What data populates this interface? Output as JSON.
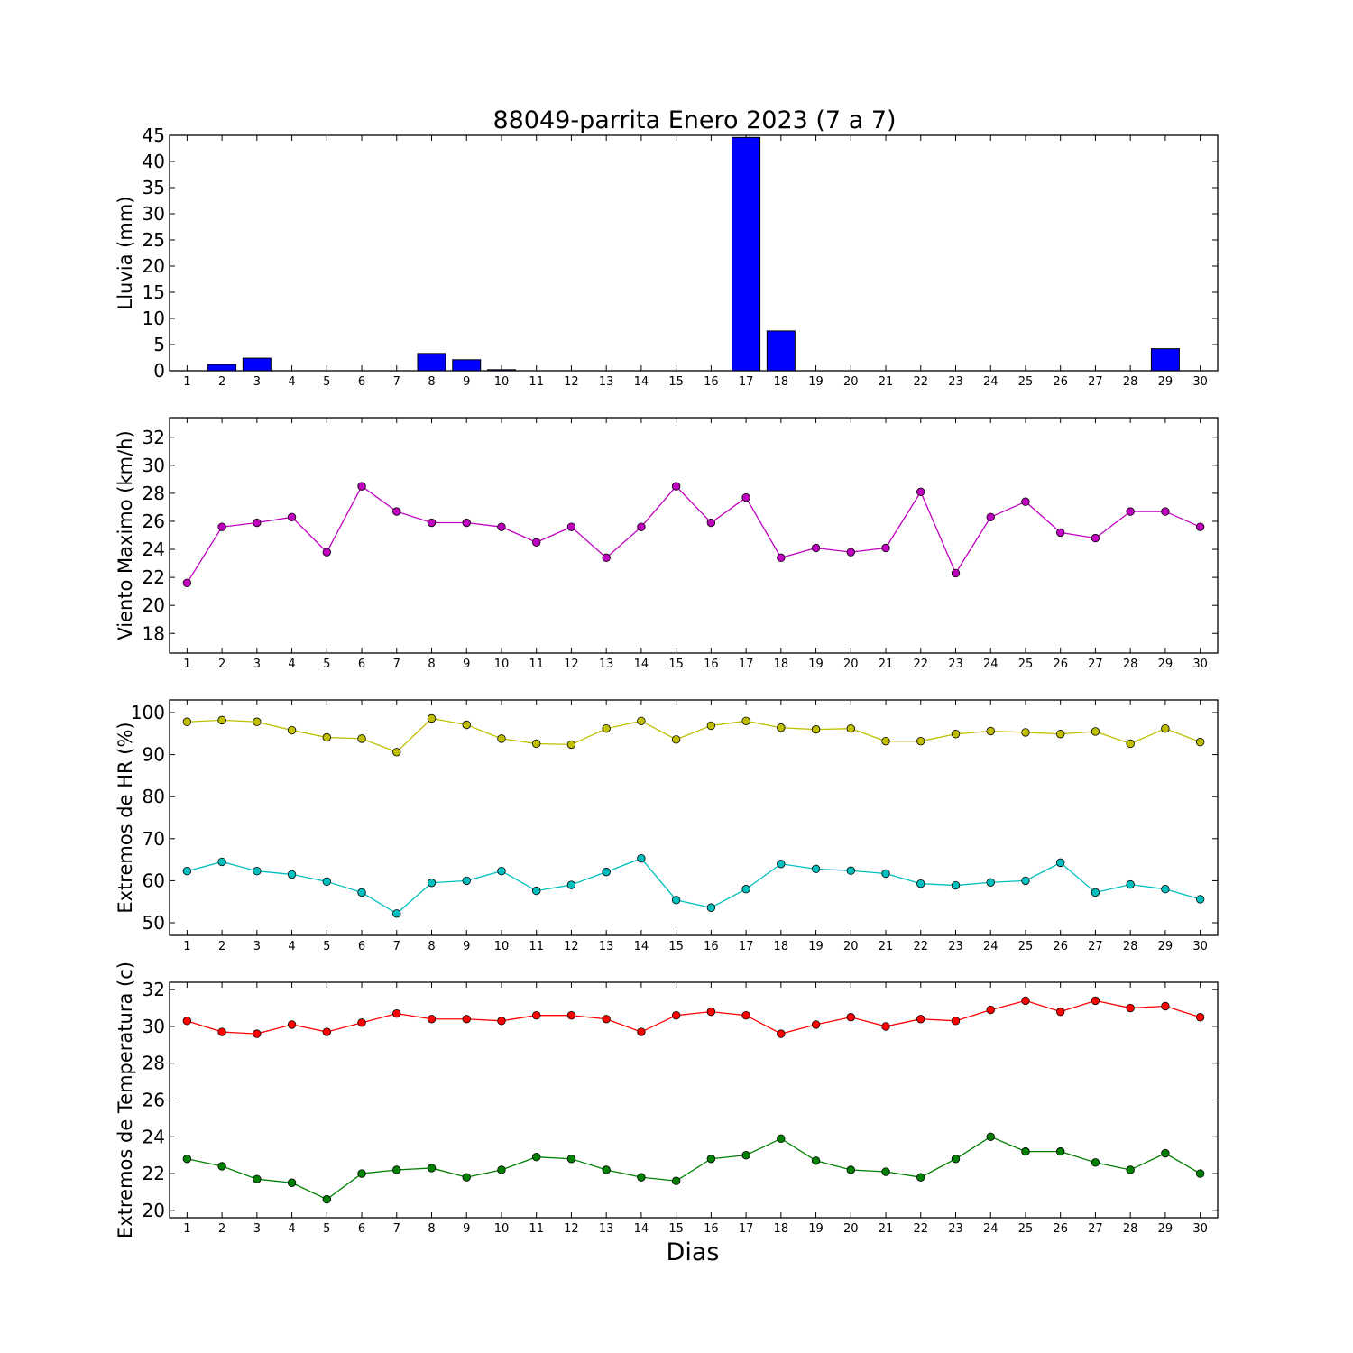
{
  "title": "88049-parrita Enero 2023  (7 a 7)",
  "xlabel": "Dias",
  "chart_data": [
    {
      "type": "bar",
      "ylabel": "Lluvia (mm)",
      "ylim": [
        0,
        45
      ],
      "yticks": [
        0,
        5,
        10,
        15,
        20,
        25,
        30,
        35,
        40,
        45
      ],
      "x": [
        1,
        2,
        3,
        4,
        5,
        6,
        7,
        8,
        9,
        10,
        11,
        12,
        13,
        14,
        15,
        16,
        17,
        18,
        19,
        20,
        21,
        22,
        23,
        24,
        25,
        26,
        27,
        28,
        29,
        30
      ],
      "series": [
        {
          "color": "#0000ff",
          "values": [
            0,
            1.2,
            2.4,
            0,
            0,
            0,
            0,
            3.3,
            2.1,
            0.2,
            0,
            0,
            0,
            0,
            0,
            0,
            44.6,
            7.6,
            0,
            0,
            0,
            0,
            0,
            0,
            0,
            0,
            0,
            0,
            4.2,
            0
          ]
        }
      ]
    },
    {
      "type": "line",
      "ylabel": "Viento Maximo (km/h)",
      "ylim": [
        16.6,
        33.4
      ],
      "yticks": [
        18,
        20,
        22,
        24,
        26,
        28,
        30,
        32
      ],
      "x": [
        1,
        2,
        3,
        4,
        5,
        6,
        7,
        8,
        9,
        10,
        11,
        12,
        13,
        14,
        15,
        16,
        17,
        18,
        19,
        20,
        21,
        22,
        23,
        24,
        25,
        26,
        27,
        28,
        29,
        30
      ],
      "series": [
        {
          "color": "#bf00bf",
          "values": [
            21.6,
            25.6,
            25.9,
            26.3,
            23.8,
            28.5,
            26.7,
            25.9,
            25.9,
            25.6,
            24.5,
            25.6,
            23.4,
            25.6,
            28.5,
            25.9,
            27.7,
            23.4,
            24.1,
            23.8,
            24.1,
            28.1,
            22.3,
            26.3,
            27.4,
            25.2,
            24.8,
            26.7,
            26.7,
            25.6
          ]
        }
      ]
    },
    {
      "type": "line",
      "ylabel": "Extremos de HR (%)",
      "ylim": [
        47,
        103
      ],
      "yticks": [
        50,
        60,
        70,
        80,
        90,
        100
      ],
      "x": [
        1,
        2,
        3,
        4,
        5,
        6,
        7,
        8,
        9,
        10,
        11,
        12,
        13,
        14,
        15,
        16,
        17,
        18,
        19,
        20,
        21,
        22,
        23,
        24,
        25,
        26,
        27,
        28,
        29,
        30
      ],
      "series": [
        {
          "color": "#bfbf00",
          "values": [
            97.8,
            98.2,
            97.8,
            95.8,
            94.1,
            93.8,
            90.6,
            98.6,
            97.1,
            93.8,
            92.6,
            92.4,
            96.2,
            98,
            93.6,
            96.9,
            98,
            96.4,
            96,
            96.2,
            93.2,
            93.2,
            94.9,
            95.6,
            95.3,
            94.9,
            95.5,
            92.6,
            96.2,
            93
          ]
        },
        {
          "color": "#00bfbf",
          "values": [
            62.3,
            64.5,
            62.3,
            61.5,
            59.8,
            57.2,
            52.2,
            59.5,
            60,
            62.3,
            57.6,
            59,
            62.1,
            65.3,
            55.4,
            53.6,
            58,
            64,
            62.8,
            62.4,
            61.7,
            59.3,
            58.9,
            59.6,
            60,
            64.3,
            57.2,
            59.1,
            58,
            55.6
          ]
        }
      ]
    },
    {
      "type": "line",
      "ylabel": "Extremos de Temperatura (c)",
      "ylim": [
        19.6,
        32.4
      ],
      "yticks": [
        20,
        22,
        24,
        26,
        28,
        30,
        32
      ],
      "x": [
        1,
        2,
        3,
        4,
        5,
        6,
        7,
        8,
        9,
        10,
        11,
        12,
        13,
        14,
        15,
        16,
        17,
        18,
        19,
        20,
        21,
        22,
        23,
        24,
        25,
        26,
        27,
        28,
        29,
        30
      ],
      "series": [
        {
          "color": "#ff0000",
          "values": [
            30.3,
            29.7,
            29.6,
            30.1,
            29.7,
            30.2,
            30.7,
            30.4,
            30.4,
            30.3,
            30.6,
            30.6,
            30.4,
            29.7,
            30.6,
            30.8,
            30.6,
            29.6,
            30.1,
            30.5,
            30,
            30.4,
            30.3,
            30.9,
            31.4,
            30.8,
            31.4,
            31,
            31.1,
            30.5
          ]
        },
        {
          "color": "#008000",
          "values": [
            22.8,
            22.4,
            21.7,
            21.5,
            20.6,
            22,
            22.2,
            22.3,
            21.8,
            22.2,
            22.9,
            22.8,
            22.2,
            21.8,
            21.6,
            22.8,
            23,
            23.9,
            22.7,
            22.2,
            22.1,
            21.8,
            22.8,
            24,
            23.2,
            23.2,
            22.6,
            22.2,
            23.1,
            22
          ]
        }
      ]
    }
  ]
}
